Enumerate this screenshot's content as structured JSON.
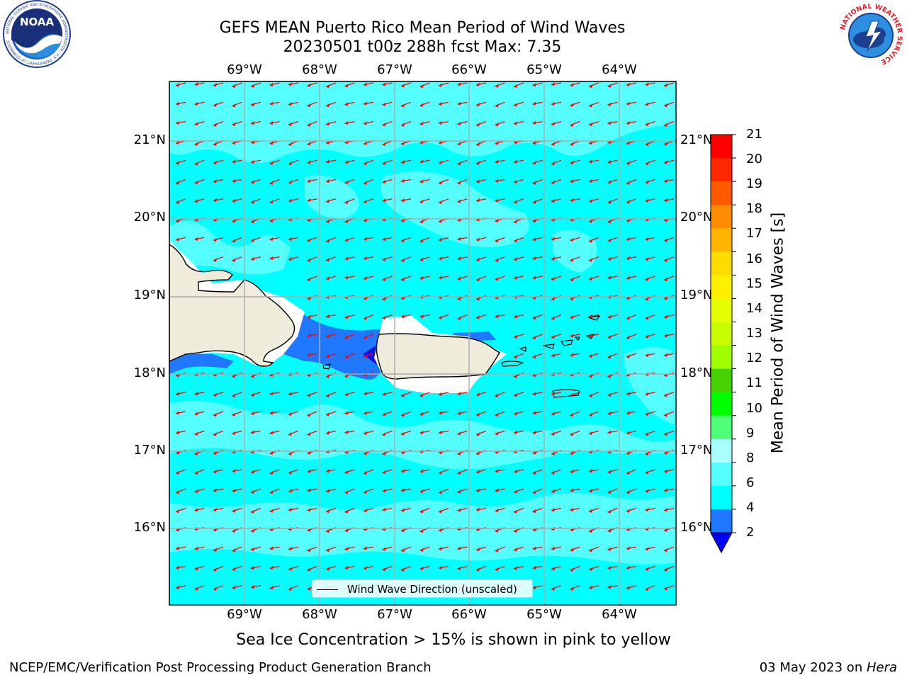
{
  "header": {
    "title_line1": "GEFS MEAN Puerto Rico Mean Period of Wind Waves",
    "title_line2": "20230501 t00z 288h fcst   Max: 7.35"
  },
  "logos": {
    "left": {
      "icon": "noaa-logo-icon",
      "text": "NOAA",
      "ring_text": "NATIONAL OCEANIC AND ATMOSPHERIC ADMINISTRATION · U.S. DEPARTMENT OF COMMERCE"
    },
    "right": {
      "icon": "nws-logo-icon",
      "ring_text": "NATIONAL WEATHER SERVICE"
    }
  },
  "map": {
    "lon_labels": [
      "69°W",
      "68°W",
      "67°W",
      "66°W",
      "65°W",
      "64°W"
    ],
    "lat_labels": [
      "21°N",
      "20°N",
      "19°N",
      "18°N",
      "17°N",
      "16°N"
    ],
    "colors": {
      "ocean_main": "#00ffff",
      "ocean_light": "#55ffff",
      "shallow_blue": "#1f78ff",
      "deep_blue": "#1010e0",
      "land": "#efecdc",
      "coast": "#000000",
      "grid": "#aaaaaa",
      "arrow": "#ff0000"
    },
    "arrow_direction": "toward west-southwest"
  },
  "colorbar": {
    "label": "Mean Period of Wind Waves [s]",
    "tick_labels": [
      "21",
      "20",
      "19",
      "18",
      "17",
      "16",
      "15",
      "14",
      "13",
      "12",
      "11",
      "10",
      "9",
      "8",
      "6",
      "4",
      "2"
    ],
    "bands": [
      "#ff0000",
      "#ff2600",
      "#ff5a00",
      "#ff8c00",
      "#ffb400",
      "#ffdc00",
      "#fff000",
      "#e6ff00",
      "#c8ff00",
      "#a0ff00",
      "#46d200",
      "#00ff00",
      "#50ff78",
      "#aaffff",
      "#55ffff",
      "#00ffff",
      "#1f78ff"
    ],
    "extend_color": "#0000ff"
  },
  "legend": {
    "label": "Wind Wave Direction (unscaled)"
  },
  "note": "Sea Ice Concentration > 15% is shown in pink to yellow",
  "footer": {
    "left": "NCEP/EMC/Verification Post Processing Product Generation Branch",
    "right_prefix": "03 May 2023 on ",
    "right_host": "Hera"
  }
}
